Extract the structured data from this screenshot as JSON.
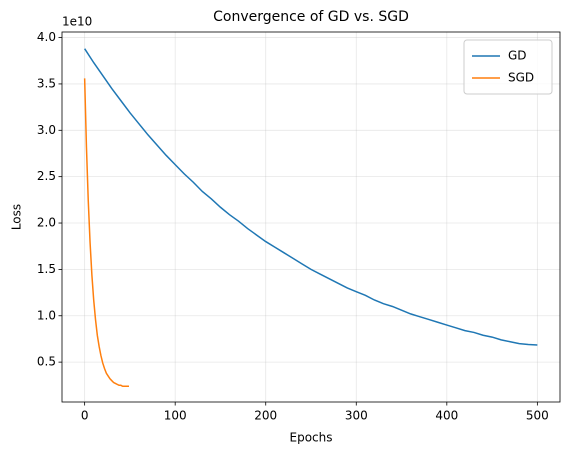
{
  "chart_data": {
    "type": "line",
    "title": "Convergence of GD vs. SGD",
    "x_label": "Epochs",
    "y_label": "Loss",
    "y_offset_label": "1e10",
    "xlim": [
      -25,
      525
    ],
    "xticks": [
      0,
      100,
      200,
      300,
      400,
      500
    ],
    "ylim": [
      0.07,
      4.06
    ],
    "yticks": [
      0.5,
      {
        "value": 1.0,
        "label": "1.0"
      },
      1.5,
      {
        "value": 2.0,
        "label": "2.0"
      },
      2.5,
      {
        "value": 3.0,
        "label": "3.0"
      },
      3.5,
      {
        "value": 4.0,
        "label": "4.0"
      }
    ],
    "grid": true,
    "legend": "upper right",
    "series": [
      {
        "name": "GD",
        "color": "#1f77b4",
        "x": [
          0,
          10,
          20,
          30,
          40,
          50,
          60,
          70,
          80,
          90,
          100,
          110,
          120,
          130,
          140,
          150,
          160,
          170,
          180,
          190,
          200,
          210,
          220,
          230,
          240,
          250,
          260,
          270,
          280,
          290,
          300,
          310,
          320,
          330,
          340,
          350,
          360,
          370,
          380,
          390,
          400,
          410,
          420,
          430,
          440,
          450,
          460,
          470,
          480,
          490,
          500
        ],
        "values": [
          3.88,
          3.73,
          3.59,
          3.45,
          3.32,
          3.19,
          3.07,
          2.95,
          2.84,
          2.73,
          2.63,
          2.53,
          2.44,
          2.34,
          2.26,
          2.17,
          2.09,
          2.02,
          1.94,
          1.87,
          1.8,
          1.74,
          1.68,
          1.62,
          1.56,
          1.5,
          1.45,
          1.4,
          1.35,
          1.3,
          1.26,
          1.22,
          1.17,
          1.13,
          1.1,
          1.06,
          1.02,
          0.99,
          0.96,
          0.93,
          0.9,
          0.87,
          0.84,
          0.82,
          0.79,
          0.77,
          0.74,
          0.72,
          0.7,
          0.69,
          0.685
        ]
      },
      {
        "name": "SGD",
        "color": "#ff7f0e",
        "x": [
          0,
          2,
          4,
          6,
          8,
          10,
          12,
          14,
          16,
          18,
          20,
          22,
          24,
          26,
          28,
          30,
          32,
          34,
          36,
          38,
          40,
          42,
          44,
          46,
          48,
          49
        ],
        "values": [
          3.56,
          2.82,
          2.24,
          1.79,
          1.44,
          1.17,
          0.96,
          0.79,
          0.67,
          0.57,
          0.49,
          0.43,
          0.38,
          0.35,
          0.32,
          0.3,
          0.28,
          0.27,
          0.26,
          0.25,
          0.25,
          0.24,
          0.24,
          0.24,
          0.24,
          0.24
        ]
      }
    ]
  }
}
